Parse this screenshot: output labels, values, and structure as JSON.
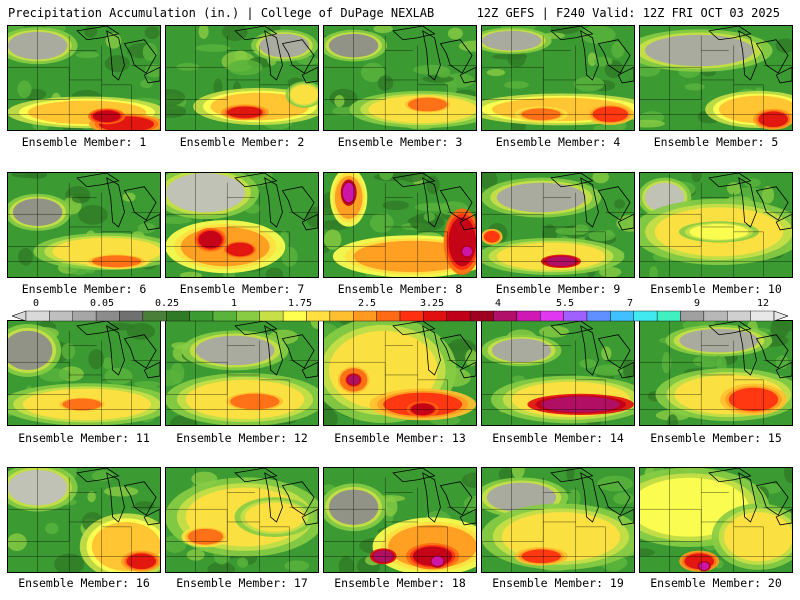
{
  "header": {
    "left": "Precipitation Accumulation (in.) | College of DuPage NEXLAB",
    "right": "12Z GEFS | F240 Valid: 12Z FRI OCT 03 2025"
  },
  "legend": {
    "labels": [
      "0",
      "0.05",
      "0.25",
      "1",
      "1.75",
      "2.5",
      "3.25",
      "4",
      "5.5",
      "7",
      "9",
      "12"
    ],
    "colors": [
      "#d9d9d9",
      "#bfbfbf",
      "#a6a6a6",
      "#8c8c8c",
      "#707070",
      "#4a7f3a",
      "#2f7a26",
      "#3c9a33",
      "#5ab43c",
      "#88cc44",
      "#c8e048",
      "#ffff50",
      "#ffe040",
      "#ffc030",
      "#ff9a20",
      "#ff6a14",
      "#ff3010",
      "#e01010",
      "#c00018",
      "#a00020",
      "#b0106a",
      "#d018b4",
      "#e038f0",
      "#a060ff",
      "#6090ff",
      "#40c0ff",
      "#40e8f0",
      "#40f0c0",
      "#a0a0a0",
      "#b8b8b8",
      "#d0d0d0",
      "#e8e8e8"
    ]
  },
  "members": [
    {
      "label": "Ensemble Member: 1"
    },
    {
      "label": "Ensemble Member: 2"
    },
    {
      "label": "Ensemble Member: 3"
    },
    {
      "label": "Ensemble Member: 4"
    },
    {
      "label": "Ensemble Member: 5"
    },
    {
      "label": "Ensemble Member: 6"
    },
    {
      "label": "Ensemble Member: 7"
    },
    {
      "label": "Ensemble Member: 8"
    },
    {
      "label": "Ensemble Member: 9"
    },
    {
      "label": "Ensemble Member: 10"
    },
    {
      "label": "Ensemble Member: 11"
    },
    {
      "label": "Ensemble Member: 12"
    },
    {
      "label": "Ensemble Member: 13"
    },
    {
      "label": "Ensemble Member: 14"
    },
    {
      "label": "Ensemble Member: 15"
    },
    {
      "label": "Ensemble Member: 16"
    },
    {
      "label": "Ensemble Member: 17"
    },
    {
      "label": "Ensemble Member: 18"
    },
    {
      "label": "Ensemble Member: 19"
    },
    {
      "label": "Ensemble Member: 20"
    }
  ]
}
